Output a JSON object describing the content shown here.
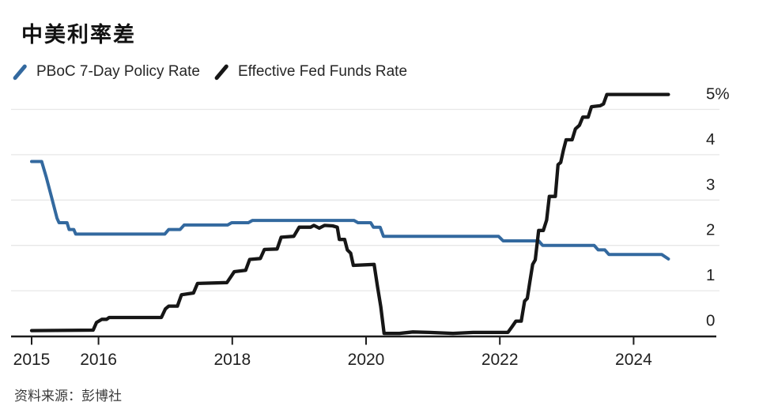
{
  "header": {
    "title": "中美利率差"
  },
  "footer": {
    "source": "资料来源：彭博社"
  },
  "chart_data": {
    "type": "line",
    "title": "中美利率差",
    "source": "资料来源：彭博社",
    "legend_position": "top-left",
    "grid": "horizontal",
    "background": "#ffffff",
    "x_axis": {
      "ticks": [
        2015,
        2016,
        2018,
        2020,
        2022,
        2024
      ],
      "labels": [
        "2015",
        "2016",
        "2018",
        "2020",
        "2022",
        "2024"
      ],
      "range": [
        2015,
        2024.6
      ]
    },
    "y_axis": {
      "ticks": [
        0,
        1,
        2,
        3,
        4,
        5
      ],
      "labels": [
        "0",
        "1",
        "2",
        "3",
        "4",
        "5%"
      ],
      "range": [
        0,
        5.5
      ],
      "unit": "%"
    },
    "series": [
      {
        "name": "PBoC 7-Day Policy Rate",
        "color": "#33699f",
        "points": [
          [
            2015.0,
            3.85
          ],
          [
            2015.15,
            3.85
          ],
          [
            2015.22,
            3.5
          ],
          [
            2015.3,
            3.05
          ],
          [
            2015.38,
            2.6
          ],
          [
            2015.41,
            2.5
          ],
          [
            2015.53,
            2.5
          ],
          [
            2015.56,
            2.35
          ],
          [
            2015.63,
            2.35
          ],
          [
            2015.66,
            2.25
          ],
          [
            2016.99,
            2.25
          ],
          [
            2017.05,
            2.35
          ],
          [
            2017.22,
            2.35
          ],
          [
            2017.28,
            2.45
          ],
          [
            2017.93,
            2.45
          ],
          [
            2017.99,
            2.5
          ],
          [
            2018.24,
            2.5
          ],
          [
            2018.3,
            2.55
          ],
          [
            2019.82,
            2.55
          ],
          [
            2019.88,
            2.5
          ],
          [
            2020.07,
            2.5
          ],
          [
            2020.11,
            2.4
          ],
          [
            2020.21,
            2.4
          ],
          [
            2020.26,
            2.2
          ],
          [
            2021.98,
            2.2
          ],
          [
            2022.05,
            2.1
          ],
          [
            2022.58,
            2.1
          ],
          [
            2022.64,
            2.0
          ],
          [
            2023.41,
            2.0
          ],
          [
            2023.47,
            1.9
          ],
          [
            2023.57,
            1.9
          ],
          [
            2023.63,
            1.8
          ],
          [
            2024.42,
            1.8
          ],
          [
            2024.52,
            1.7
          ]
        ]
      },
      {
        "name": "Effective Fed Funds Rate",
        "color": "#161616",
        "points": [
          [
            2015.0,
            0.12
          ],
          [
            2015.92,
            0.13
          ],
          [
            2015.97,
            0.3
          ],
          [
            2016.05,
            0.37
          ],
          [
            2016.12,
            0.37
          ],
          [
            2016.16,
            0.41
          ],
          [
            2016.94,
            0.41
          ],
          [
            2017.0,
            0.6
          ],
          [
            2017.05,
            0.66
          ],
          [
            2017.18,
            0.66
          ],
          [
            2017.24,
            0.91
          ],
          [
            2017.42,
            0.95
          ],
          [
            2017.48,
            1.16
          ],
          [
            2017.92,
            1.18
          ],
          [
            2017.98,
            1.31
          ],
          [
            2018.03,
            1.42
          ],
          [
            2018.2,
            1.45
          ],
          [
            2018.26,
            1.69
          ],
          [
            2018.42,
            1.71
          ],
          [
            2018.48,
            1.91
          ],
          [
            2018.67,
            1.92
          ],
          [
            2018.73,
            2.18
          ],
          [
            2018.92,
            2.2
          ],
          [
            2019.0,
            2.4
          ],
          [
            2019.17,
            2.4
          ],
          [
            2019.22,
            2.44
          ],
          [
            2019.3,
            2.38
          ],
          [
            2019.38,
            2.44
          ],
          [
            2019.5,
            2.43
          ],
          [
            2019.57,
            2.4
          ],
          [
            2019.6,
            2.13
          ],
          [
            2019.68,
            2.13
          ],
          [
            2019.72,
            1.9
          ],
          [
            2019.77,
            1.83
          ],
          [
            2019.81,
            1.56
          ],
          [
            2020.12,
            1.58
          ],
          [
            2020.17,
            1.1
          ],
          [
            2020.22,
            0.65
          ],
          [
            2020.27,
            0.06
          ],
          [
            2020.5,
            0.06
          ],
          [
            2020.7,
            0.09
          ],
          [
            2020.95,
            0.08
          ],
          [
            2021.3,
            0.06
          ],
          [
            2021.6,
            0.08
          ],
          [
            2021.9,
            0.08
          ],
          [
            2022.12,
            0.08
          ],
          [
            2022.18,
            0.2
          ],
          [
            2022.24,
            0.33
          ],
          [
            2022.32,
            0.33
          ],
          [
            2022.37,
            0.77
          ],
          [
            2022.41,
            0.83
          ],
          [
            2022.45,
            1.21
          ],
          [
            2022.49,
            1.58
          ],
          [
            2022.53,
            1.68
          ],
          [
            2022.58,
            2.33
          ],
          [
            2022.65,
            2.33
          ],
          [
            2022.7,
            2.56
          ],
          [
            2022.74,
            3.08
          ],
          [
            2022.83,
            3.08
          ],
          [
            2022.87,
            3.78
          ],
          [
            2022.91,
            3.83
          ],
          [
            2022.95,
            4.1
          ],
          [
            2022.99,
            4.33
          ],
          [
            2023.08,
            4.33
          ],
          [
            2023.13,
            4.57
          ],
          [
            2023.19,
            4.65
          ],
          [
            2023.24,
            4.83
          ],
          [
            2023.32,
            4.83
          ],
          [
            2023.37,
            5.06
          ],
          [
            2023.5,
            5.08
          ],
          [
            2023.55,
            5.12
          ],
          [
            2023.6,
            5.33
          ],
          [
            2024.52,
            5.33
          ]
        ]
      }
    ]
  }
}
